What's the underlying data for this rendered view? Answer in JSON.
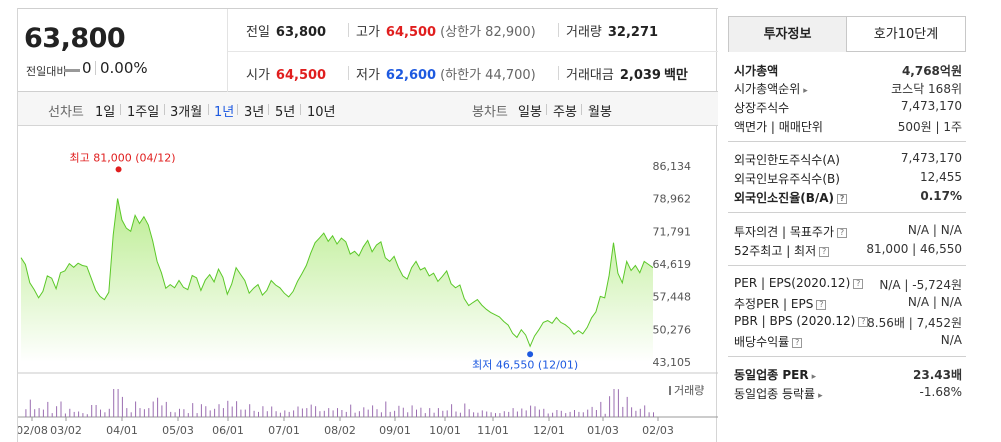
{
  "summary": {
    "current_price": "63,800",
    "change_label": "전일대비",
    "change_value": "0",
    "change_pct": "0.00%",
    "prev_close": {
      "label": "전일",
      "value": "63,800"
    },
    "high": {
      "label": "고가",
      "value": "64,500",
      "limit": "(상한가 82,900)"
    },
    "volume": {
      "label": "거래량",
      "value": "32,271"
    },
    "open": {
      "label": "시가",
      "value": "64,500"
    },
    "low": {
      "label": "저가",
      "value": "62,600",
      "limit": "(하한가 44,700)"
    },
    "amount": {
      "label": "거래대금",
      "value": "2,039",
      "unit": "백만"
    }
  },
  "toolbar": {
    "line_label": "선차트",
    "periods": [
      "1일",
      "1주일",
      "3개월",
      "1년",
      "3년",
      "5년",
      "10년"
    ],
    "selected_period": "1년",
    "candle_label": "봉차트",
    "candles": [
      "일봉",
      "주봉",
      "월봉"
    ]
  },
  "chart_data": {
    "type": "area",
    "y_ticks": [
      "86,134",
      "78,962",
      "71,791",
      "64,619",
      "57,448",
      "50,276",
      "43,105"
    ],
    "ylim": [
      43105,
      86134
    ],
    "x_ticks": [
      "02/08",
      "03/02",
      "04/01",
      "05/03",
      "06/01",
      "07/01",
      "08/02",
      "09/01",
      "10/01",
      "11/01",
      "12/01",
      "01/03",
      "02/03"
    ],
    "high_annotation": "최고 81,000 (04/12)",
    "low_annotation": "최저 46,550 (12/01)",
    "volume_legend": "거래량",
    "values": [
      66000,
      64500,
      60500,
      59000,
      57200,
      58600,
      62000,
      61500,
      59200,
      62700,
      63100,
      64700,
      63900,
      64800,
      64300,
      64100,
      61500,
      58900,
      57500,
      56800,
      58400,
      71000,
      79000,
      74300,
      72500,
      71800,
      75300,
      73500,
      75000,
      73200,
      69700,
      65200,
      62700,
      59300,
      60100,
      59400,
      61000,
      59500,
      59000,
      62100,
      61600,
      58800,
      61100,
      62300,
      60700,
      63500,
      61700,
      58000,
      60200,
      63800,
      62400,
      61000,
      58200,
      59300,
      60100,
      57800,
      58800,
      61000,
      60000,
      59400,
      58200,
      57400,
      58600,
      60800,
      62500,
      64300,
      67000,
      69300,
      70300,
      71400,
      69600,
      70800,
      69000,
      70300,
      69500,
      66800,
      67400,
      66400,
      68400,
      69800,
      67300,
      68800,
      69500,
      66000,
      65200,
      66300,
      63900,
      62000,
      61300,
      63800,
      65200,
      63300,
      63800,
      62000,
      62600,
      60800,
      61900,
      63100,
      60300,
      59400,
      60000,
      57000,
      55500,
      56200,
      56800,
      55600,
      54700,
      54000,
      53500,
      53000,
      52000,
      51200,
      49400,
      48500,
      50200,
      49000,
      46550,
      48800,
      50200,
      51800,
      52200,
      51600,
      52900,
      51800,
      51300,
      50500,
      49200,
      50000,
      49300,
      50700,
      52800,
      54100,
      57500,
      57200,
      62100,
      69300,
      62600,
      60500,
      65200,
      63200,
      64300,
      62700,
      65200,
      64500,
      63800
    ]
  },
  "right_tabs": {
    "active": "투자정보",
    "inactive": "호가10단계"
  },
  "invest": {
    "market_cap": {
      "label": "시가총액",
      "value": "4,768억원"
    },
    "rank": {
      "label": "시가총액순위",
      "value": "코스닥 168위"
    },
    "shares": {
      "label": "상장주식수",
      "value": "7,473,170"
    },
    "par": {
      "label": "액면가 | 매매단위",
      "value": "500원 | 1주"
    },
    "foreign_limit": {
      "label": "외국인한도주식수(A)",
      "value": "7,473,170"
    },
    "foreign_hold": {
      "label": "외국인보유주식수(B)",
      "value": "12,455"
    },
    "foreign_ratio": {
      "label": "외국인소진율(B/A)",
      "value": "0.17%"
    },
    "opinion": {
      "label": "투자의견 | 목표주가",
      "value": "N/A | N/A"
    },
    "w52": {
      "label": "52주최고 | 최저",
      "value": "81,000 | 46,550"
    },
    "per": {
      "label": "PER | EPS(2020.12)",
      "value": "N/A | -5,724원"
    },
    "est_per": {
      "label": "추정PER | EPS",
      "value": "N/A | N/A"
    },
    "pbr": {
      "label": "PBR | BPS (2020.12)",
      "value": "8.56배 | 7,452원"
    },
    "dividend": {
      "label": "배당수익률",
      "value": "N/A"
    },
    "ind_per": {
      "label": "동일업종 PER",
      "value": "23.43배"
    },
    "ind_rate": {
      "label": "동일업종 등락률",
      "value": "-1.68%"
    }
  }
}
